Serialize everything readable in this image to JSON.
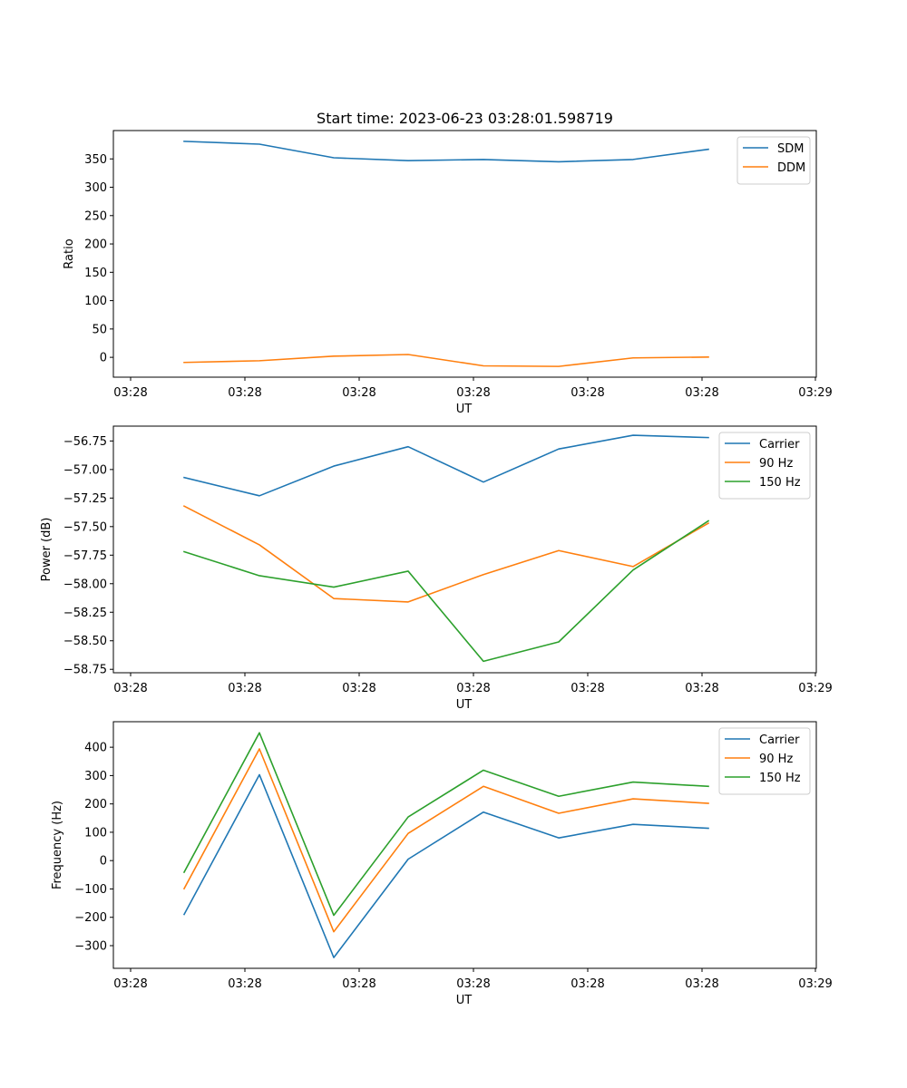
{
  "chart_data": [
    {
      "type": "line",
      "title": "Start time: 2023-06-23 03:28:01.598719",
      "xlabel": "UT",
      "ylabel": "Ratio",
      "x_tick_labels": [
        "03:28",
        "03:28",
        "03:28",
        "03:28",
        "03:28",
        "03:28",
        "03:28"
      ],
      "x_tick_label_end": "03:29",
      "ylim": [
        -35,
        400
      ],
      "yticks": [
        0,
        50,
        100,
        150,
        200,
        250,
        300,
        350
      ],
      "ytick_labels": [
        "0",
        "50",
        "100",
        "150",
        "200",
        "250",
        "300",
        "350"
      ],
      "legend": "top-right",
      "grid": false,
      "series": [
        {
          "name": "SDM",
          "color": "#1f77b4",
          "values": [
            381,
            376,
            352,
            347,
            349,
            345,
            349,
            367
          ]
        },
        {
          "name": "DDM",
          "color": "#ff7f0e",
          "values": [
            -9,
            -6,
            2,
            5,
            -15,
            -16,
            -1,
            0.5
          ]
        }
      ]
    },
    {
      "type": "line",
      "xlabel": "UT",
      "ylabel": "Power (dB)",
      "x_tick_labels": [
        "03:28",
        "03:28",
        "03:28",
        "03:28",
        "03:28",
        "03:28",
        "03:28"
      ],
      "x_tick_label_end": "03:29",
      "ylim": [
        -58.78,
        -56.62
      ],
      "yticks": [
        -58.75,
        -58.5,
        -58.25,
        -58.0,
        -57.75,
        -57.5,
        -57.25,
        -57.0,
        -56.75
      ],
      "ytick_labels": [
        "−58.75",
        "−58.50",
        "−58.25",
        "−58.00",
        "−57.75",
        "−57.50",
        "−57.25",
        "−57.00",
        "−56.75"
      ],
      "legend": "top-right",
      "grid": false,
      "series": [
        {
          "name": "Carrier",
          "color": "#1f77b4",
          "values": [
            -57.07,
            -57.23,
            -56.97,
            -56.8,
            -57.11,
            -56.82,
            -56.7,
            -56.72
          ]
        },
        {
          "name": "90 Hz",
          "color": "#ff7f0e",
          "values": [
            -57.32,
            -57.66,
            -58.13,
            -58.16,
            -57.92,
            -57.71,
            -57.85,
            -57.47
          ]
        },
        {
          "name": "150 Hz",
          "color": "#2ca02c",
          "values": [
            -57.72,
            -57.93,
            -58.03,
            -57.89,
            -58.68,
            -58.51,
            -57.88,
            -57.45
          ]
        }
      ]
    },
    {
      "type": "line",
      "xlabel": "UT",
      "ylabel": "Frequency (Hz)",
      "x_tick_labels": [
        "03:28",
        "03:28",
        "03:28",
        "03:28",
        "03:28",
        "03:28",
        "03:28"
      ],
      "x_tick_label_end": "03:29",
      "ylim": [
        -380,
        490
      ],
      "yticks": [
        -300,
        -200,
        -100,
        0,
        100,
        200,
        300,
        400
      ],
      "ytick_labels": [
        "−300",
        "−200",
        "−100",
        "0",
        "100",
        "200",
        "300",
        "400"
      ],
      "legend": "top-right",
      "grid": false,
      "series": [
        {
          "name": "Carrier",
          "color": "#1f77b4",
          "values": [
            -190,
            303,
            -342,
            5,
            171,
            80,
            128,
            114
          ]
        },
        {
          "name": "90 Hz",
          "color": "#ff7f0e",
          "values": [
            -99,
            394,
            -251,
            96,
            262,
            167,
            218,
            202
          ]
        },
        {
          "name": "150 Hz",
          "color": "#2ca02c",
          "values": [
            -41,
            451,
            -193,
            154,
            319,
            227,
            277,
            262
          ]
        }
      ]
    }
  ]
}
